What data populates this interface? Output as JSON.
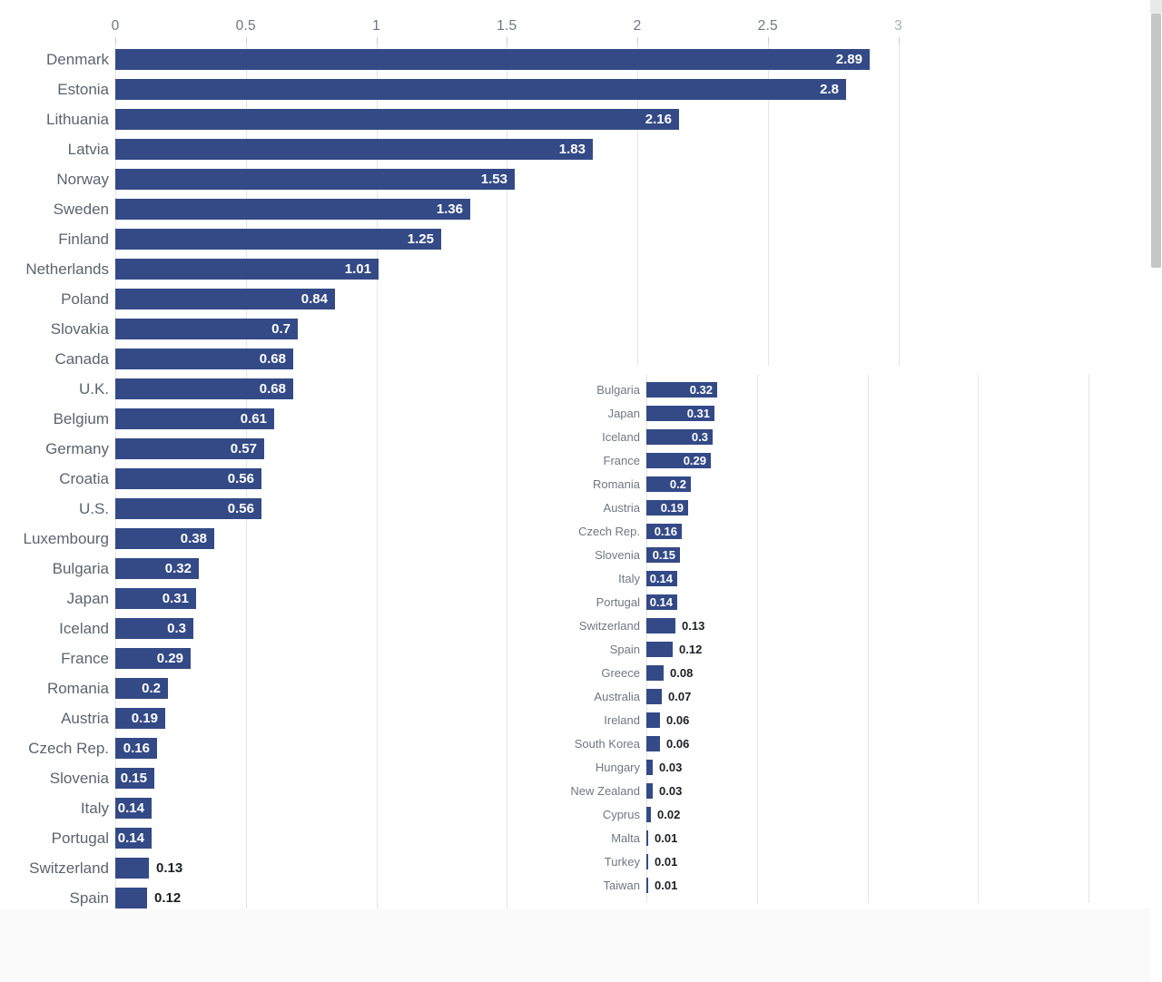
{
  "colors": {
    "bar": "#334A87",
    "gridline": "#e4e4e6",
    "tick_mark": "#c9cdd4",
    "axis_label": "#6e7585",
    "axis_label_last": "#a9aeb8",
    "category_label_main": "#5c6370",
    "category_label_inset": "#707684",
    "value_inside": "#ffffff",
    "value_outside": "#1c1f26",
    "footer_background": "#fafafa",
    "scrollbar_thumb": "#c6c6c6"
  },
  "axis": {
    "tick_labels": [
      "0",
      "0.5",
      "1",
      "1.5",
      "2",
      "2.5",
      "3"
    ],
    "tick_values": [
      0,
      0.5,
      1,
      1.5,
      2,
      2.5,
      3
    ]
  },
  "chart_data": [
    {
      "type": "bar",
      "orientation": "horizontal",
      "panel": "main",
      "title": "",
      "xlabel": "",
      "ylabel": "",
      "xlim": [
        0,
        3
      ],
      "grid": true,
      "legend": "none",
      "label_inside_min": 0.14,
      "categories": [
        "Denmark",
        "Estonia",
        "Lithuania",
        "Latvia",
        "Norway",
        "Sweden",
        "Finland",
        "Netherlands",
        "Poland",
        "Slovakia",
        "Canada",
        "U.K.",
        "Belgium",
        "Germany",
        "Croatia",
        "U.S.",
        "Luxembourg",
        "Bulgaria",
        "Japan",
        "Iceland",
        "France",
        "Romania",
        "Austria",
        "Czech Rep.",
        "Slovenia",
        "Italy",
        "Portugal",
        "Switzerland",
        "Spain"
      ],
      "values": [
        2.89,
        2.8,
        2.16,
        1.83,
        1.53,
        1.36,
        1.25,
        1.01,
        0.84,
        0.7,
        0.68,
        0.68,
        0.61,
        0.57,
        0.56,
        0.56,
        0.38,
        0.32,
        0.31,
        0.3,
        0.29,
        0.2,
        0.19,
        0.16,
        0.15,
        0.14,
        0.14,
        0.13,
        0.12
      ],
      "value_labels": [
        "2.89",
        "2.8",
        "2.16",
        "1.83",
        "1.53",
        "1.36",
        "1.25",
        "1.01",
        "0.84",
        "0.7",
        "0.68",
        "0.68",
        "0.61",
        "0.57",
        "0.56",
        "0.56",
        "0.38",
        "0.32",
        "0.31",
        "0.3",
        "0.29",
        "0.2",
        "0.19",
        "0.16",
        "0.15",
        "0.14",
        "0.14",
        "0.13",
        "0.12"
      ]
    },
    {
      "type": "bar",
      "orientation": "horizontal",
      "panel": "inset",
      "title": "",
      "xlabel": "",
      "ylabel": "",
      "xlim": [
        0,
        2.44
      ],
      "grid": true,
      "legend": "none",
      "label_inside_min": 0.14,
      "gridline_values": [
        0,
        0.5,
        1,
        1.5,
        2
      ],
      "categories": [
        "Bulgaria",
        "Japan",
        "Iceland",
        "France",
        "Romania",
        "Austria",
        "Czech Rep.",
        "Slovenia",
        "Italy",
        "Portugal",
        "Switzerland",
        "Spain",
        "Greece",
        "Australia",
        "Ireland",
        "South Korea",
        "Hungary",
        "New Zealand",
        "Cyprus",
        "Malta",
        "Turkey",
        "Taiwan"
      ],
      "values": [
        0.32,
        0.31,
        0.3,
        0.29,
        0.2,
        0.19,
        0.16,
        0.15,
        0.14,
        0.14,
        0.13,
        0.12,
        0.08,
        0.07,
        0.06,
        0.06,
        0.03,
        0.03,
        0.02,
        0.01,
        0.01,
        0.01
      ],
      "value_labels": [
        "0.32",
        "0.31",
        "0.3",
        "0.29",
        "0.2",
        "0.19",
        "0.16",
        "0.15",
        "0.14",
        "0.14",
        "0.13",
        "0.12",
        "0.08",
        "0.07",
        "0.06",
        "0.06",
        "0.03",
        "0.03",
        "0.02",
        "0.01",
        "0.01",
        "0.01"
      ]
    }
  ]
}
